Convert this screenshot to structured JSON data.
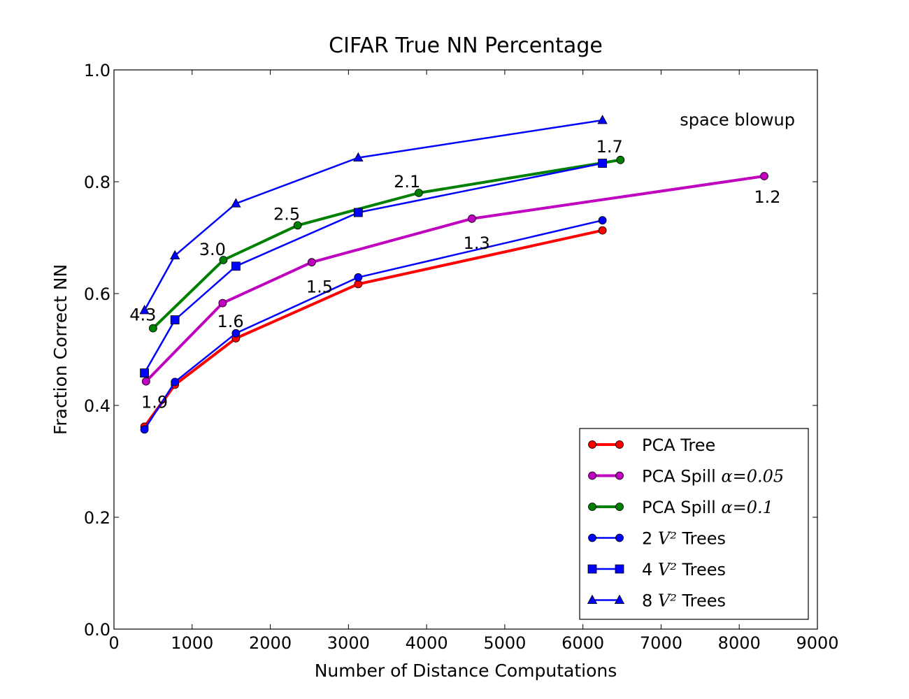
{
  "chart_data": {
    "type": "line",
    "title": "CIFAR True NN Percentage",
    "xlabel": "Number of Distance Computations",
    "ylabel": "Fraction Correct NN",
    "xlim": [
      0,
      9000
    ],
    "ylim": [
      0.0,
      1.0
    ],
    "xticks": [
      0,
      1000,
      2000,
      3000,
      4000,
      5000,
      6000,
      7000,
      8000,
      9000
    ],
    "yticks": [
      0.0,
      0.2,
      0.4,
      0.6,
      0.8,
      1.0
    ],
    "xtick_labels": [
      "0",
      "1000",
      "2000",
      "3000",
      "4000",
      "5000",
      "6000",
      "7000",
      "8000",
      "9000"
    ],
    "ytick_labels": [
      "0.0",
      "0.2",
      "0.4",
      "0.6",
      "0.8",
      "1.0"
    ],
    "grid": false,
    "legend_position": "bottom-right",
    "series": [
      {
        "name": "PCA Tree",
        "color": "#ff0000",
        "marker": "circle",
        "width": 4,
        "points": [
          [
            390,
            0.362
          ],
          [
            780,
            0.437
          ],
          [
            1560,
            0.52
          ],
          [
            3125,
            0.617
          ],
          [
            6250,
            0.713
          ]
        ]
      },
      {
        "name": "PCA Spill",
        "name_math": "α=0.05",
        "color": "#bf00bf",
        "marker": "circle",
        "width": 4,
        "points": [
          [
            410,
            0.443
          ],
          [
            1390,
            0.583
          ],
          [
            2530,
            0.656
          ],
          [
            4580,
            0.734
          ],
          [
            8320,
            0.81
          ]
        ]
      },
      {
        "name": "PCA Spill",
        "name_math": "α=0.1",
        "color": "#008000",
        "marker": "circle",
        "width": 4,
        "points": [
          [
            500,
            0.538
          ],
          [
            1400,
            0.66
          ],
          [
            2350,
            0.722
          ],
          [
            3900,
            0.78
          ],
          [
            6480,
            0.839
          ]
        ]
      },
      {
        "name": "2",
        "name_math": "V²",
        "name_suffix": "Trees",
        "color": "#0000ff",
        "marker": "circle",
        "width": 2.5,
        "points": [
          [
            390,
            0.357
          ],
          [
            780,
            0.442
          ],
          [
            1560,
            0.529
          ],
          [
            3125,
            0.629
          ],
          [
            6250,
            0.731
          ]
        ]
      },
      {
        "name": "4",
        "name_math": "V²",
        "name_suffix": "Trees",
        "color": "#0000ff",
        "marker": "square",
        "width": 2.5,
        "points": [
          [
            390,
            0.458
          ],
          [
            780,
            0.553
          ],
          [
            1560,
            0.649
          ],
          [
            3125,
            0.745
          ],
          [
            6250,
            0.833
          ]
        ]
      },
      {
        "name": "8",
        "name_math": "V²",
        "name_suffix": "Trees",
        "color": "#0000ff",
        "marker": "triangle",
        "width": 2.5,
        "points": [
          [
            390,
            0.57
          ],
          [
            780,
            0.668
          ],
          [
            1560,
            0.761
          ],
          [
            3125,
            0.843
          ],
          [
            6250,
            0.91
          ]
        ]
      }
    ],
    "annotations": [
      {
        "text": "4.3",
        "x": 370,
        "y": 0.563
      },
      {
        "text": "3.0",
        "x": 1260,
        "y": 0.68
      },
      {
        "text": "2.5",
        "x": 2210,
        "y": 0.743
      },
      {
        "text": "2.1",
        "x": 3750,
        "y": 0.801
      },
      {
        "text": "1.7",
        "x": 6340,
        "y": 0.864
      },
      {
        "text": "1.9",
        "x": 520,
        "y": 0.407
      },
      {
        "text": "1.6",
        "x": 1490,
        "y": 0.551
      },
      {
        "text": "1.5",
        "x": 2630,
        "y": 0.613
      },
      {
        "text": "1.3",
        "x": 4640,
        "y": 0.691
      },
      {
        "text": "1.2",
        "x": 8360,
        "y": 0.774
      },
      {
        "text": "space blowup",
        "x": 7240,
        "y": 0.912
      }
    ]
  }
}
